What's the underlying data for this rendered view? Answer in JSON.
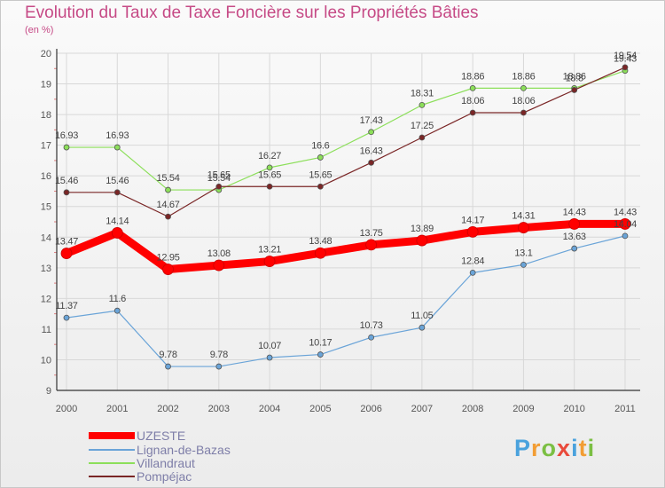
{
  "header": {
    "title": "Evolution du Taux de Taxe Foncière sur les Propriétés Bâties",
    "unit": "(en %)"
  },
  "brand": {
    "letters": [
      "P",
      "r",
      "o",
      "x",
      "i",
      "t",
      "i"
    ],
    "colors": [
      "#4aa2dd",
      "#f29d34",
      "#7bbf43",
      "#e94a3b",
      "#4aa2dd",
      "#f29d34",
      "#7bbf43"
    ]
  },
  "chart_data": {
    "type": "line",
    "x": [
      "2000",
      "2001",
      "2002",
      "2003",
      "2004",
      "2005",
      "2006",
      "2007",
      "2008",
      "2009",
      "2010",
      "2011"
    ],
    "ylim": [
      9,
      20
    ],
    "yticks": [
      "9",
      "10",
      "11",
      "12",
      "13",
      "14",
      "15",
      "16",
      "17",
      "18",
      "19",
      "20"
    ],
    "grid": true,
    "legend_position": "bottom-left",
    "series": [
      {
        "name": "UZESTE",
        "color": "#ff0000",
        "values": [
          13.47,
          14.14,
          12.95,
          13.08,
          13.21,
          13.48,
          13.75,
          13.89,
          14.17,
          14.31,
          14.43,
          14.43
        ],
        "labels": [
          "13.47",
          "14.14",
          "12.95",
          "13.08",
          "13.21",
          "13.48",
          "13.75",
          "13.89",
          "14.17",
          "14.31",
          "14.43",
          "14.43"
        ]
      },
      {
        "name": "Lignan-de-Bazas",
        "color": "#6aa4d8",
        "values": [
          11.37,
          11.6,
          9.78,
          9.78,
          10.07,
          10.17,
          10.73,
          11.05,
          12.84,
          13.1,
          13.63,
          14.04
        ],
        "labels": [
          "11.37",
          "11.6",
          "9.78",
          "9.78",
          "10.07",
          "10.17",
          "10.73",
          "11.05",
          "12.84",
          "13.1",
          "13.63",
          "14.04"
        ]
      },
      {
        "name": "Villandraut",
        "color": "#8cdf5a",
        "values": [
          16.93,
          16.93,
          15.54,
          15.54,
          16.27,
          16.6,
          17.43,
          18.31,
          18.86,
          18.86,
          18.86,
          19.43
        ],
        "labels": [
          "16.93",
          "16.93",
          "15.54",
          "15.54",
          "16.27",
          "16.6",
          "17.43",
          "18.31",
          "18.86",
          "18.86",
          "18.86",
          "19.43"
        ]
      },
      {
        "name": "Pompéjac",
        "color": "#7a2626",
        "values": [
          15.46,
          15.46,
          14.67,
          15.65,
          15.65,
          15.65,
          16.43,
          17.25,
          18.06,
          18.06,
          18.8,
          19.54
        ],
        "labels": [
          "15.46",
          "15.46",
          "14.67",
          "15.65",
          "15.65",
          "15.65",
          "16.43",
          "17.25",
          "18.06",
          "18.06",
          "18.8",
          "19.54"
        ]
      }
    ]
  }
}
